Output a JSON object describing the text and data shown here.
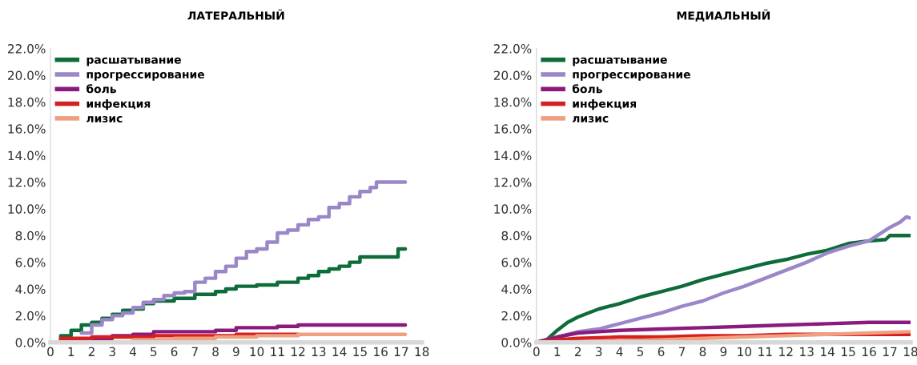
{
  "chart_data": [
    {
      "type": "step",
      "title": "ЛАТЕРАЛЬНЫЙ",
      "xlim": [
        0,
        18
      ],
      "xticks": [
        0,
        1,
        2,
        3,
        4,
        5,
        6,
        7,
        8,
        9,
        10,
        11,
        12,
        13,
        14,
        15,
        16,
        17,
        18
      ],
      "ylim": [
        0,
        22
      ],
      "yticks": [
        {
          "value": 0,
          "label": "0.0%"
        },
        {
          "value": 2,
          "label": "2.0%"
        },
        {
          "value": 4,
          "label": "4.0%"
        },
        {
          "value": 6,
          "label": "6.0%"
        },
        {
          "value": 8,
          "label": "8.0%"
        },
        {
          "value": 10,
          "label": "10.0%"
        },
        {
          "value": 12,
          "label": "12.0%"
        },
        {
          "value": 14,
          "label": "14.0%"
        },
        {
          "value": 16,
          "label": "16.0%"
        },
        {
          "value": 18,
          "label": "18.0%"
        },
        {
          "value": 20,
          "label": "20.0%"
        },
        {
          "value": 22,
          "label": "22.0%"
        }
      ],
      "grid": false,
      "legend": "top left",
      "series": [
        {
          "name": "расшатывание",
          "color": "#0e6b3a",
          "x": [
            0,
            0.5,
            1,
            1.5,
            2,
            2.5,
            3,
            3.5,
            4,
            4.5,
            5,
            6,
            6.5,
            7,
            8,
            8.5,
            9,
            10,
            10.5,
            11,
            12,
            12.5,
            13,
            13.5,
            14,
            14.5,
            15,
            16.8,
            16.85,
            17.2
          ],
          "values": [
            0,
            0.5,
            0.9,
            1.3,
            1.5,
            1.8,
            2.1,
            2.4,
            2.5,
            2.9,
            3.1,
            3.3,
            3.3,
            3.6,
            3.8,
            4.0,
            4.2,
            4.3,
            4.3,
            4.5,
            4.8,
            5.0,
            5.3,
            5.5,
            5.7,
            6.0,
            6.4,
            6.4,
            7.0,
            7.0
          ]
        },
        {
          "name": "прогрессирование",
          "color": "#9b87c8",
          "x": [
            0,
            1,
            1.5,
            2,
            2.5,
            3,
            3.5,
            4,
            4.5,
            5,
            5.5,
            6,
            6.5,
            7,
            7.5,
            8,
            8.5,
            9,
            9.5,
            10,
            10.5,
            11,
            11.5,
            12,
            12.5,
            13,
            13.5,
            14,
            14.5,
            15,
            15.5,
            15.8,
            17.2
          ],
          "values": [
            0,
            null,
            0.7,
            1.3,
            1.7,
            2.0,
            2.2,
            2.6,
            3.0,
            3.2,
            3.5,
            3.7,
            3.8,
            4.5,
            4.8,
            5.3,
            5.7,
            6.3,
            6.8,
            7.0,
            7.5,
            8.2,
            8.4,
            8.8,
            9.2,
            9.4,
            10.1,
            10.4,
            10.9,
            11.3,
            11.6,
            12.0,
            12.0
          ]
        },
        {
          "name": "боль",
          "color": "#8b1a7e",
          "x": [
            0,
            1,
            2,
            3,
            4,
            5,
            6,
            8,
            9,
            10,
            11,
            12,
            17.2
          ],
          "values": [
            0,
            0.2,
            0.3,
            0.5,
            0.6,
            0.8,
            0.8,
            0.9,
            1.1,
            1.1,
            1.2,
            1.3,
            1.3
          ]
        },
        {
          "name": "инфекция",
          "color": "#d42020",
          "x": [
            0,
            0.5,
            2,
            3,
            5,
            8,
            9,
            12
          ],
          "values": [
            0,
            0.3,
            0.4,
            0.4,
            0.5,
            0.5,
            0.6,
            0.6
          ]
        },
        {
          "name": "лизис",
          "color": "#f0a080",
          "x": [
            0,
            2,
            4,
            6,
            8,
            10,
            12,
            17.2
          ],
          "values": [
            0,
            null,
            0.2,
            0.3,
            0.4,
            0.5,
            0.6,
            0.6
          ]
        }
      ]
    },
    {
      "type": "line",
      "title": "МЕДИАЛЬНЫЙ",
      "xlim": [
        0,
        18
      ],
      "xticks": [
        0,
        1,
        2,
        3,
        4,
        5,
        6,
        7,
        8,
        9,
        10,
        11,
        12,
        13,
        14,
        15,
        16,
        17,
        18
      ],
      "ylim": [
        0,
        22
      ],
      "yticks": [
        {
          "value": 0,
          "label": "0.0%"
        },
        {
          "value": 2,
          "label": "2.0%"
        },
        {
          "value": 4,
          "label": "4.0%"
        },
        {
          "value": 6,
          "label": "6.0%"
        },
        {
          "value": 8,
          "label": "8.0%"
        },
        {
          "value": 10,
          "label": "10.0%"
        },
        {
          "value": 12,
          "label": "12.0%"
        },
        {
          "value": 14,
          "label": "14.0%"
        },
        {
          "value": 16,
          "label": "16.0%"
        },
        {
          "value": 18,
          "label": "18.0%"
        },
        {
          "value": 20,
          "label": "20.0%"
        },
        {
          "value": 22,
          "label": "22.0%"
        }
      ],
      "grid": false,
      "legend": "top left",
      "series": [
        {
          "name": "расшатывание",
          "color": "#0e6b3a",
          "x": [
            0,
            0.5,
            1,
            1.5,
            2,
            3,
            4,
            5,
            6,
            7,
            8,
            9,
            10,
            11,
            12,
            13,
            14,
            15,
            16,
            16.8,
            17,
            18
          ],
          "values": [
            0,
            0.2,
            0.9,
            1.5,
            1.9,
            2.5,
            2.9,
            3.4,
            3.8,
            4.2,
            4.7,
            5.1,
            5.5,
            5.9,
            6.2,
            6.6,
            6.9,
            7.4,
            7.6,
            7.7,
            8.0,
            8.0
          ]
        },
        {
          "name": "прогрессирование",
          "color": "#9b87c8",
          "x": [
            0,
            1,
            2,
            3,
            4,
            5,
            6,
            7,
            8,
            9,
            10,
            11,
            12,
            13,
            14,
            15,
            16,
            16.5,
            17,
            17.5,
            17.8,
            18
          ],
          "values": [
            0,
            0.4,
            0.8,
            1.0,
            1.4,
            1.8,
            2.2,
            2.7,
            3.1,
            3.7,
            4.2,
            4.8,
            5.4,
            6.0,
            6.7,
            7.2,
            7.6,
            8.1,
            8.6,
            9.0,
            9.4,
            9.3
          ]
        },
        {
          "name": "боль",
          "color": "#8b1a7e",
          "x": [
            0,
            1,
            2,
            3,
            4,
            6,
            8,
            10,
            12,
            14,
            16,
            18
          ],
          "values": [
            0,
            0.4,
            0.7,
            0.8,
            0.9,
            1.0,
            1.1,
            1.2,
            1.3,
            1.4,
            1.5,
            1.5
          ]
        },
        {
          "name": "инфекция",
          "color": "#d42020",
          "x": [
            0,
            1,
            2,
            4,
            6,
            8,
            10,
            12,
            14,
            16,
            18
          ],
          "values": [
            0,
            0.2,
            0.3,
            0.4,
            0.4,
            0.5,
            0.5,
            0.6,
            0.6,
            0.6,
            0.6
          ]
        },
        {
          "name": "лизис",
          "color": "#f0a080",
          "x": [
            0,
            2,
            4,
            6,
            8,
            10,
            12,
            14,
            16,
            18
          ],
          "values": [
            0,
            0.05,
            0.1,
            0.2,
            0.3,
            0.4,
            0.5,
            0.6,
            0.7,
            0.8
          ]
        }
      ]
    }
  ]
}
